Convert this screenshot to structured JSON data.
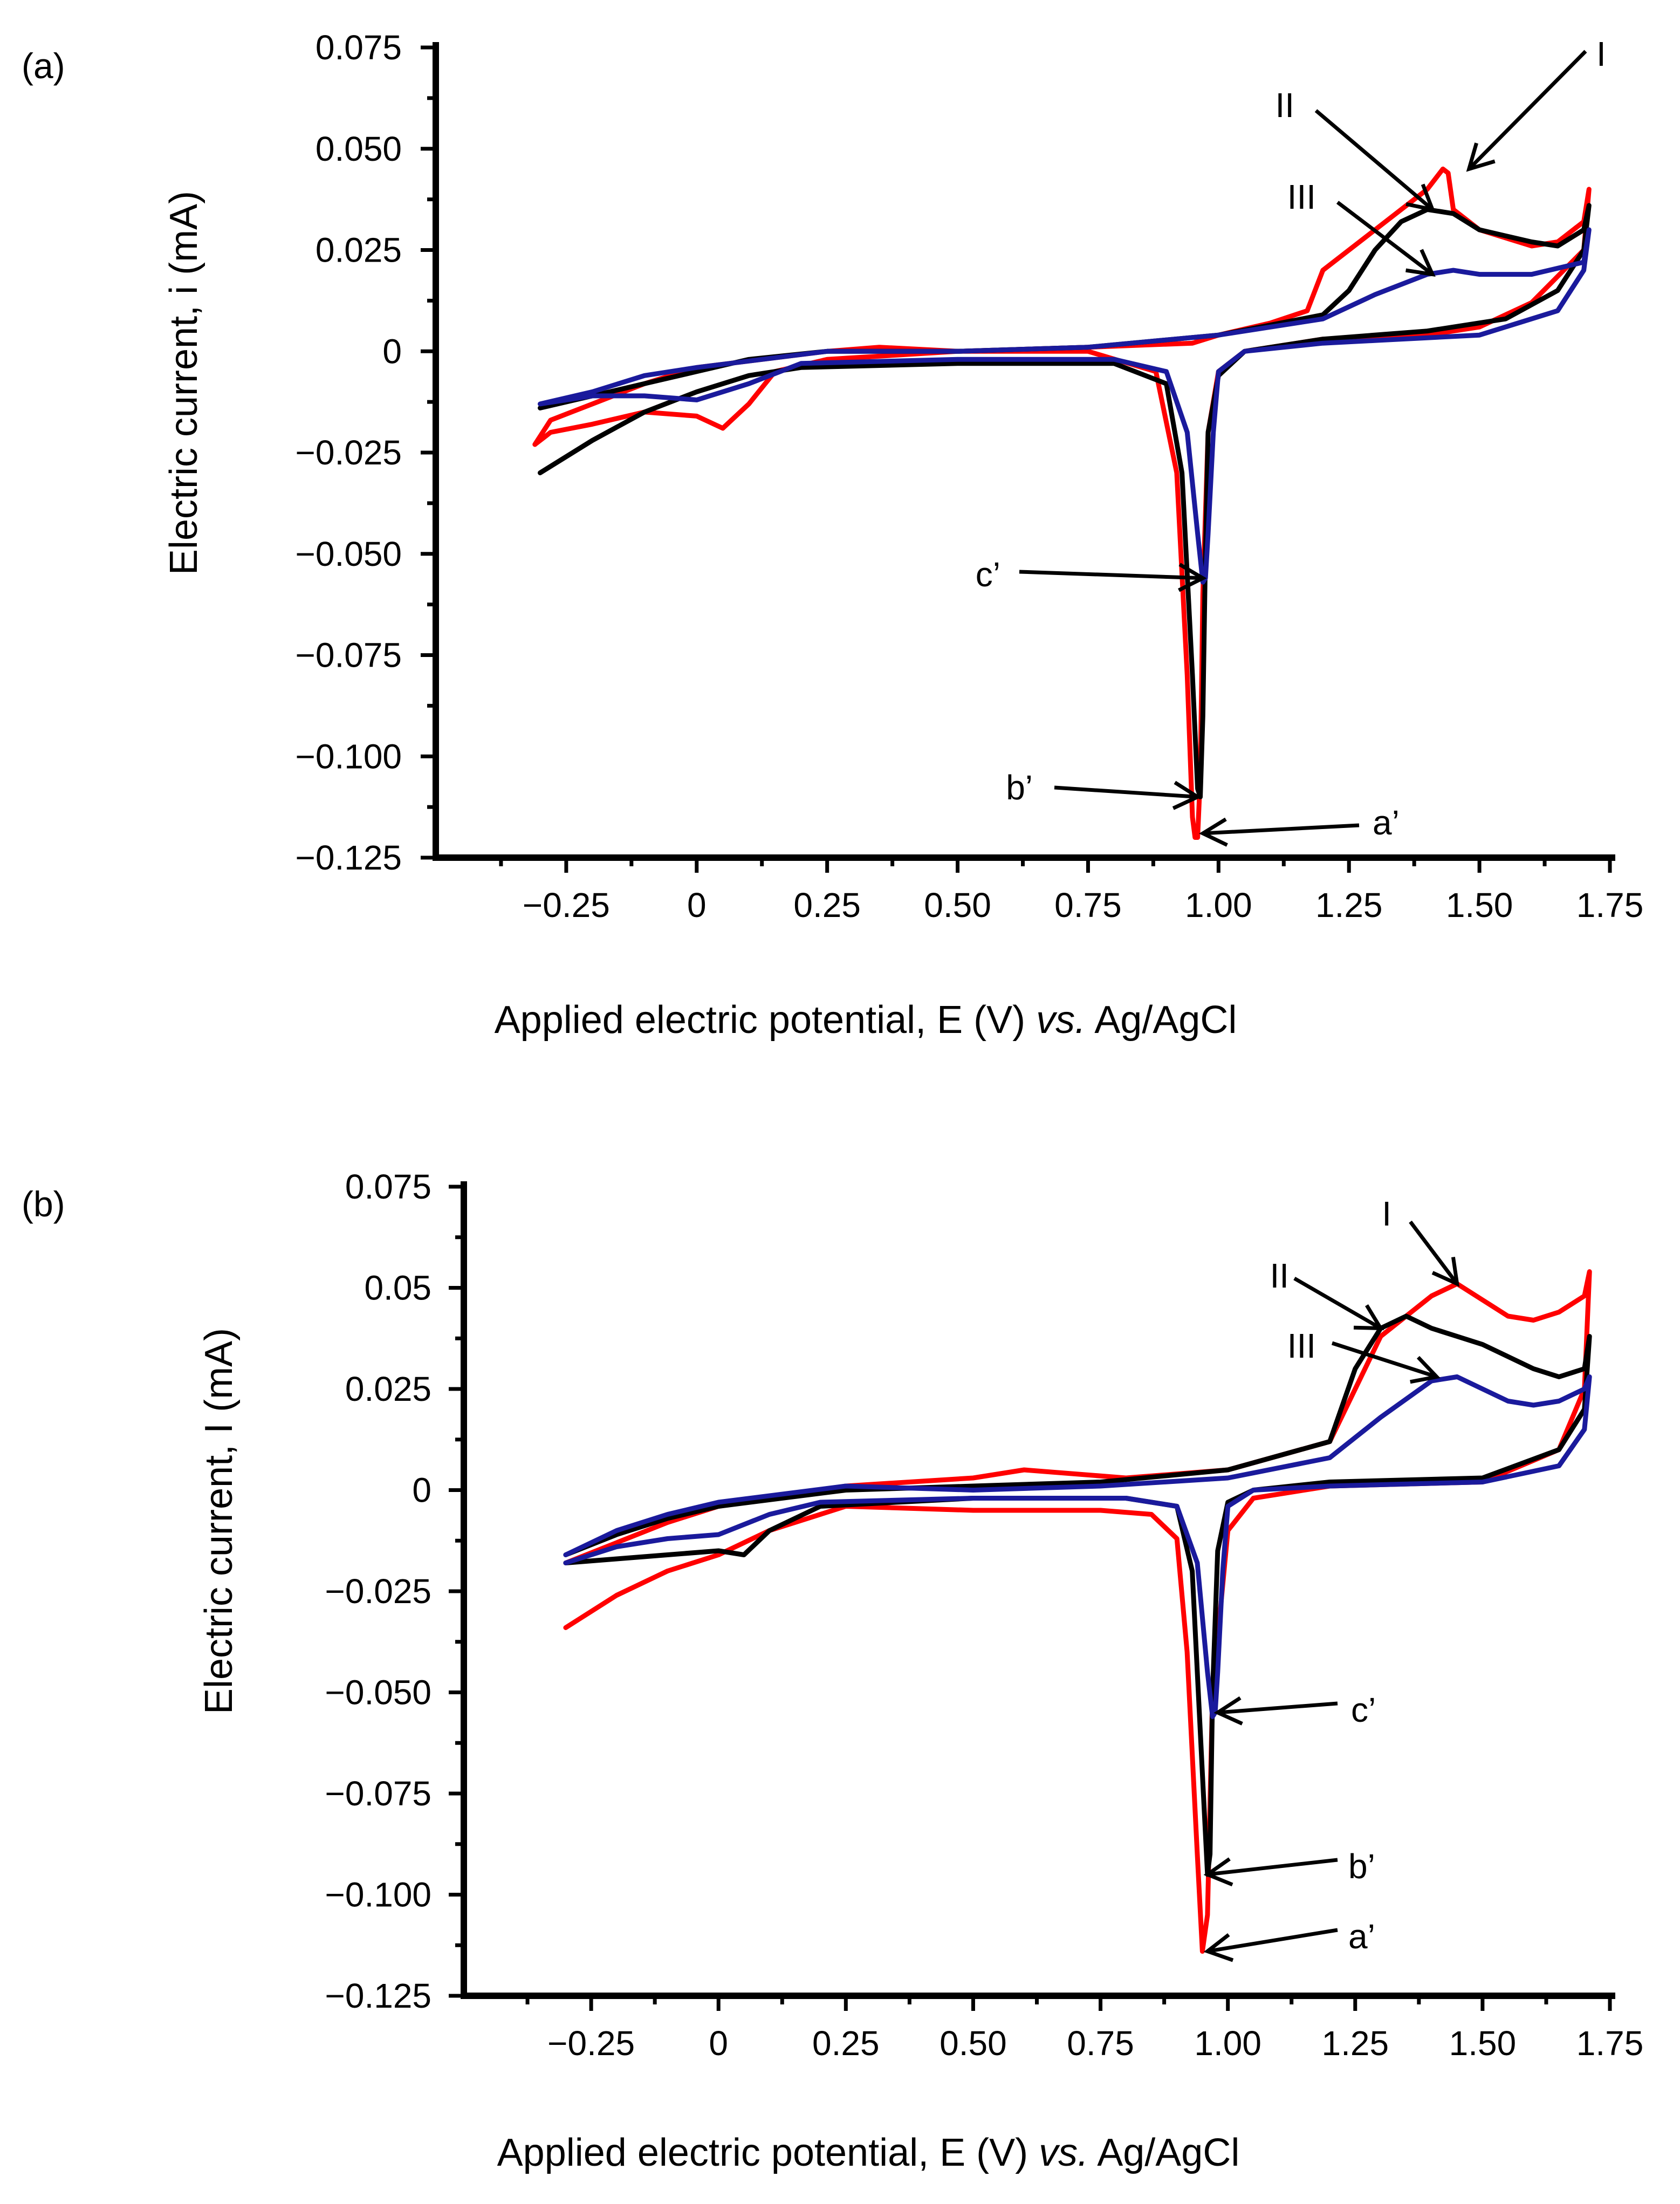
{
  "colors": {
    "a": "#ff0000",
    "b": "#000000",
    "c": "#1a1a9c",
    "axis": "#000000"
  },
  "chart_data": [
    {
      "type": "line",
      "panel_label": "(a)",
      "xlabel_main": "Applied electric potential, E (V) ",
      "xlabel_italic": "vs.",
      "xlabel_tail": " Ag/AgCl",
      "ylabel": "Electric current, i (mA)",
      "xlim": [
        -0.5,
        1.75
      ],
      "ylim": [
        -0.125,
        0.075
      ],
      "xticks": [
        -0.25,
        0,
        0.25,
        0.5,
        0.75,
        1.0,
        1.25,
        1.5,
        1.75
      ],
      "xtick_labels": [
        "−0.25",
        "0",
        "0.25",
        "0.50",
        "0.75",
        "1.00",
        "1.25",
        "1.50",
        "1.75"
      ],
      "yticks": [
        0.075,
        0.05,
        0.025,
        0,
        -0.025,
        -0.05,
        -0.075,
        -0.1,
        -0.125
      ],
      "ytick_labels": [
        "0.075",
        "0.050",
        "0.025",
        "0",
        "−0.025",
        "−0.050",
        "−0.075",
        "−0.100",
        "−0.125"
      ],
      "series": [
        {
          "name": "a",
          "color": "#ff0000",
          "x": [
            -0.31,
            -0.28,
            -0.2,
            -0.1,
            0.0,
            0.05,
            0.1,
            0.15,
            0.25,
            0.5,
            0.75,
            0.88,
            0.92,
            0.94,
            0.95,
            0.955,
            0.96,
            0.965,
            0.97,
            0.98,
            1.0,
            1.05,
            1.2,
            1.4,
            1.5,
            1.6,
            1.7,
            1.71,
            1.7,
            1.65,
            1.6,
            1.5,
            1.45,
            1.44,
            1.43,
            1.4,
            1.3,
            1.2,
            1.17,
            1.1,
            1.0,
            0.95,
            0.75,
            0.5,
            0.35,
            0.25,
            0.0,
            -0.1,
            -0.2,
            -0.28,
            -0.31
          ],
          "y": [
            -0.023,
            -0.02,
            -0.018,
            -0.015,
            -0.016,
            -0.019,
            -0.013,
            -0.005,
            -0.002,
            0.0,
            0.0,
            -0.005,
            -0.03,
            -0.08,
            -0.115,
            -0.12,
            -0.12,
            -0.105,
            -0.06,
            -0.02,
            -0.005,
            0.0,
            0.003,
            0.004,
            0.006,
            0.012,
            0.025,
            0.04,
            0.032,
            0.027,
            0.026,
            0.03,
            0.035,
            0.044,
            0.045,
            0.04,
            0.03,
            0.02,
            0.01,
            0.007,
            0.004,
            0.002,
            0.001,
            0.0,
            0.001,
            0.0,
            -0.004,
            -0.008,
            -0.013,
            -0.017,
            -0.023
          ]
        },
        {
          "name": "b",
          "color": "#000000",
          "x": [
            -0.3,
            -0.2,
            -0.1,
            0.0,
            0.1,
            0.2,
            0.5,
            0.8,
            0.9,
            0.93,
            0.95,
            0.96,
            0.965,
            0.97,
            0.975,
            0.98,
            1.0,
            1.05,
            1.2,
            1.4,
            1.55,
            1.65,
            1.7,
            1.71,
            1.7,
            1.65,
            1.6,
            1.5,
            1.45,
            1.4,
            1.35,
            1.3,
            1.25,
            1.2,
            1.0,
            0.75,
            0.5,
            0.25,
            0.1,
            0.0,
            -0.1,
            -0.2,
            -0.3
          ],
          "y": [
            -0.03,
            -0.022,
            -0.015,
            -0.01,
            -0.006,
            -0.004,
            -0.003,
            -0.003,
            -0.008,
            -0.03,
            -0.08,
            -0.108,
            -0.11,
            -0.09,
            -0.05,
            -0.02,
            -0.006,
            0.0,
            0.003,
            0.005,
            0.008,
            0.015,
            0.025,
            0.036,
            0.03,
            0.026,
            0.027,
            0.03,
            0.034,
            0.035,
            0.032,
            0.025,
            0.015,
            0.009,
            0.004,
            0.001,
            0.0,
            0.0,
            -0.002,
            -0.005,
            -0.008,
            -0.011,
            -0.014
          ]
        },
        {
          "name": "c",
          "color": "#1a1a9c",
          "x": [
            -0.3,
            -0.2,
            -0.1,
            0.0,
            0.1,
            0.2,
            0.5,
            0.8,
            0.9,
            0.94,
            0.96,
            0.97,
            0.975,
            0.98,
            0.99,
            1.0,
            1.05,
            1.2,
            1.5,
            1.65,
            1.7,
            1.71,
            1.7,
            1.6,
            1.5,
            1.45,
            1.4,
            1.3,
            1.2,
            1.0,
            0.75,
            0.5,
            0.25,
            0.0,
            -0.1,
            -0.2,
            -0.3
          ],
          "y": [
            -0.013,
            -0.011,
            -0.011,
            -0.012,
            -0.008,
            -0.003,
            -0.002,
            -0.002,
            -0.005,
            -0.02,
            -0.045,
            -0.057,
            -0.056,
            -0.045,
            -0.02,
            -0.005,
            0.0,
            0.002,
            0.004,
            0.01,
            0.02,
            0.03,
            0.022,
            0.019,
            0.019,
            0.02,
            0.019,
            0.014,
            0.008,
            0.004,
            0.001,
            0.0,
            0.0,
            -0.004,
            -0.006,
            -0.01,
            -0.013
          ]
        }
      ],
      "annotations": [
        {
          "text": "I",
          "target": [
            1.48,
            0.045
          ]
        },
        {
          "text": "II",
          "target": [
            1.41,
            0.035
          ]
        },
        {
          "text": "III",
          "target": [
            1.41,
            0.019
          ]
        },
        {
          "text": "c’",
          "target": [
            0.97,
            -0.056
          ]
        },
        {
          "text": "b’",
          "target": [
            0.96,
            -0.11
          ]
        },
        {
          "text": "a’",
          "target": [
            0.97,
            -0.119
          ]
        }
      ]
    },
    {
      "type": "line",
      "panel_label": "(b)",
      "xlabel_main": "Applied electric potential, E (V) ",
      "xlabel_italic": "vs.",
      "xlabel_tail": " Ag/AgCl",
      "ylabel": "Electric current, I (mA)",
      "xlim": [
        -0.5,
        1.75
      ],
      "ylim": [
        -0.125,
        0.075
      ],
      "xticks": [
        -0.25,
        0,
        0.25,
        0.5,
        0.75,
        1.0,
        1.25,
        1.5,
        1.75
      ],
      "xtick_labels": [
        "−0.25",
        "0",
        "0.25",
        "0.50",
        "0.75",
        "1.00",
        "1.25",
        "1.50",
        "1.75"
      ],
      "yticks": [
        0.075,
        0.05,
        0.025,
        0,
        -0.025,
        -0.05,
        -0.075,
        -0.1,
        -0.125
      ],
      "ytick_labels": [
        "0.075",
        "0.05",
        "0.025",
        "0",
        "−0.025",
        "−0.050",
        "−0.075",
        "−0.100",
        "−0.125"
      ],
      "series": [
        {
          "name": "a",
          "color": "#ff0000",
          "x": [
            -0.3,
            -0.2,
            -0.1,
            0.0,
            0.1,
            0.25,
            0.5,
            0.75,
            0.85,
            0.9,
            0.92,
            0.94,
            0.95,
            0.96,
            0.97,
            1.0,
            1.05,
            1.2,
            1.5,
            1.65,
            1.7,
            1.71,
            1.7,
            1.65,
            1.6,
            1.55,
            1.5,
            1.45,
            1.4,
            1.3,
            1.25,
            1.2,
            1.0,
            0.8,
            0.6,
            0.5,
            0.25,
            0.0,
            -0.1,
            -0.2,
            -0.3
          ],
          "y": [
            -0.034,
            -0.026,
            -0.02,
            -0.016,
            -0.01,
            -0.004,
            -0.005,
            -0.005,
            -0.006,
            -0.012,
            -0.04,
            -0.09,
            -0.114,
            -0.105,
            -0.05,
            -0.01,
            -0.002,
            0.001,
            0.002,
            0.01,
            0.025,
            0.054,
            0.048,
            0.044,
            0.042,
            0.043,
            0.047,
            0.051,
            0.048,
            0.038,
            0.025,
            0.012,
            0.005,
            0.003,
            0.005,
            0.003,
            0.001,
            -0.004,
            -0.008,
            -0.013,
            -0.018
          ]
        },
        {
          "name": "b",
          "color": "#000000",
          "x": [
            -0.3,
            -0.2,
            -0.1,
            0.0,
            0.05,
            0.1,
            0.2,
            0.5,
            0.8,
            0.9,
            0.93,
            0.95,
            0.96,
            0.965,
            0.97,
            0.98,
            1.0,
            1.05,
            1.2,
            1.5,
            1.65,
            1.7,
            1.71,
            1.7,
            1.65,
            1.6,
            1.55,
            1.5,
            1.45,
            1.4,
            1.35,
            1.3,
            1.25,
            1.2,
            1.0,
            0.75,
            0.5,
            0.25,
            0.0,
            -0.1,
            -0.2,
            -0.3
          ],
          "y": [
            -0.018,
            -0.017,
            -0.016,
            -0.015,
            -0.016,
            -0.01,
            -0.004,
            -0.002,
            -0.002,
            -0.004,
            -0.02,
            -0.07,
            -0.095,
            -0.09,
            -0.05,
            -0.015,
            -0.003,
            0.0,
            0.002,
            0.003,
            0.01,
            0.02,
            0.038,
            0.03,
            0.028,
            0.03,
            0.033,
            0.036,
            0.038,
            0.04,
            0.043,
            0.04,
            0.03,
            0.012,
            0.005,
            0.002,
            0.001,
            0.0,
            -0.004,
            -0.007,
            -0.011,
            -0.016
          ]
        },
        {
          "name": "c",
          "color": "#1a1a9c",
          "x": [
            -0.3,
            -0.2,
            -0.1,
            0.0,
            0.1,
            0.2,
            0.5,
            0.8,
            0.9,
            0.94,
            0.96,
            0.97,
            0.975,
            0.98,
            0.99,
            1.0,
            1.05,
            1.2,
            1.5,
            1.65,
            1.7,
            1.71,
            1.7,
            1.65,
            1.6,
            1.55,
            1.5,
            1.45,
            1.4,
            1.3,
            1.2,
            1.0,
            0.75,
            0.5,
            0.25,
            0.0,
            -0.1,
            -0.2,
            -0.3
          ],
          "y": [
            -0.018,
            -0.014,
            -0.012,
            -0.011,
            -0.006,
            -0.003,
            -0.002,
            -0.002,
            -0.004,
            -0.018,
            -0.045,
            -0.056,
            -0.055,
            -0.045,
            -0.02,
            -0.004,
            0.0,
            0.001,
            0.002,
            0.006,
            0.015,
            0.028,
            0.025,
            0.022,
            0.021,
            0.022,
            0.025,
            0.028,
            0.027,
            0.018,
            0.008,
            0.003,
            0.001,
            0.0,
            0.001,
            -0.003,
            -0.006,
            -0.01,
            -0.016
          ]
        }
      ],
      "annotations": [
        {
          "text": "I",
          "target": [
            1.45,
            0.051
          ]
        },
        {
          "text": "II",
          "target": [
            1.3,
            0.04
          ]
        },
        {
          "text": "III",
          "target": [
            1.41,
            0.028
          ]
        },
        {
          "text": "c’",
          "target": [
            0.98,
            -0.055
          ]
        },
        {
          "text": "b’",
          "target": [
            0.96,
            -0.095
          ]
        },
        {
          "text": "a’",
          "target": [
            0.96,
            -0.114
          ]
        }
      ]
    }
  ]
}
